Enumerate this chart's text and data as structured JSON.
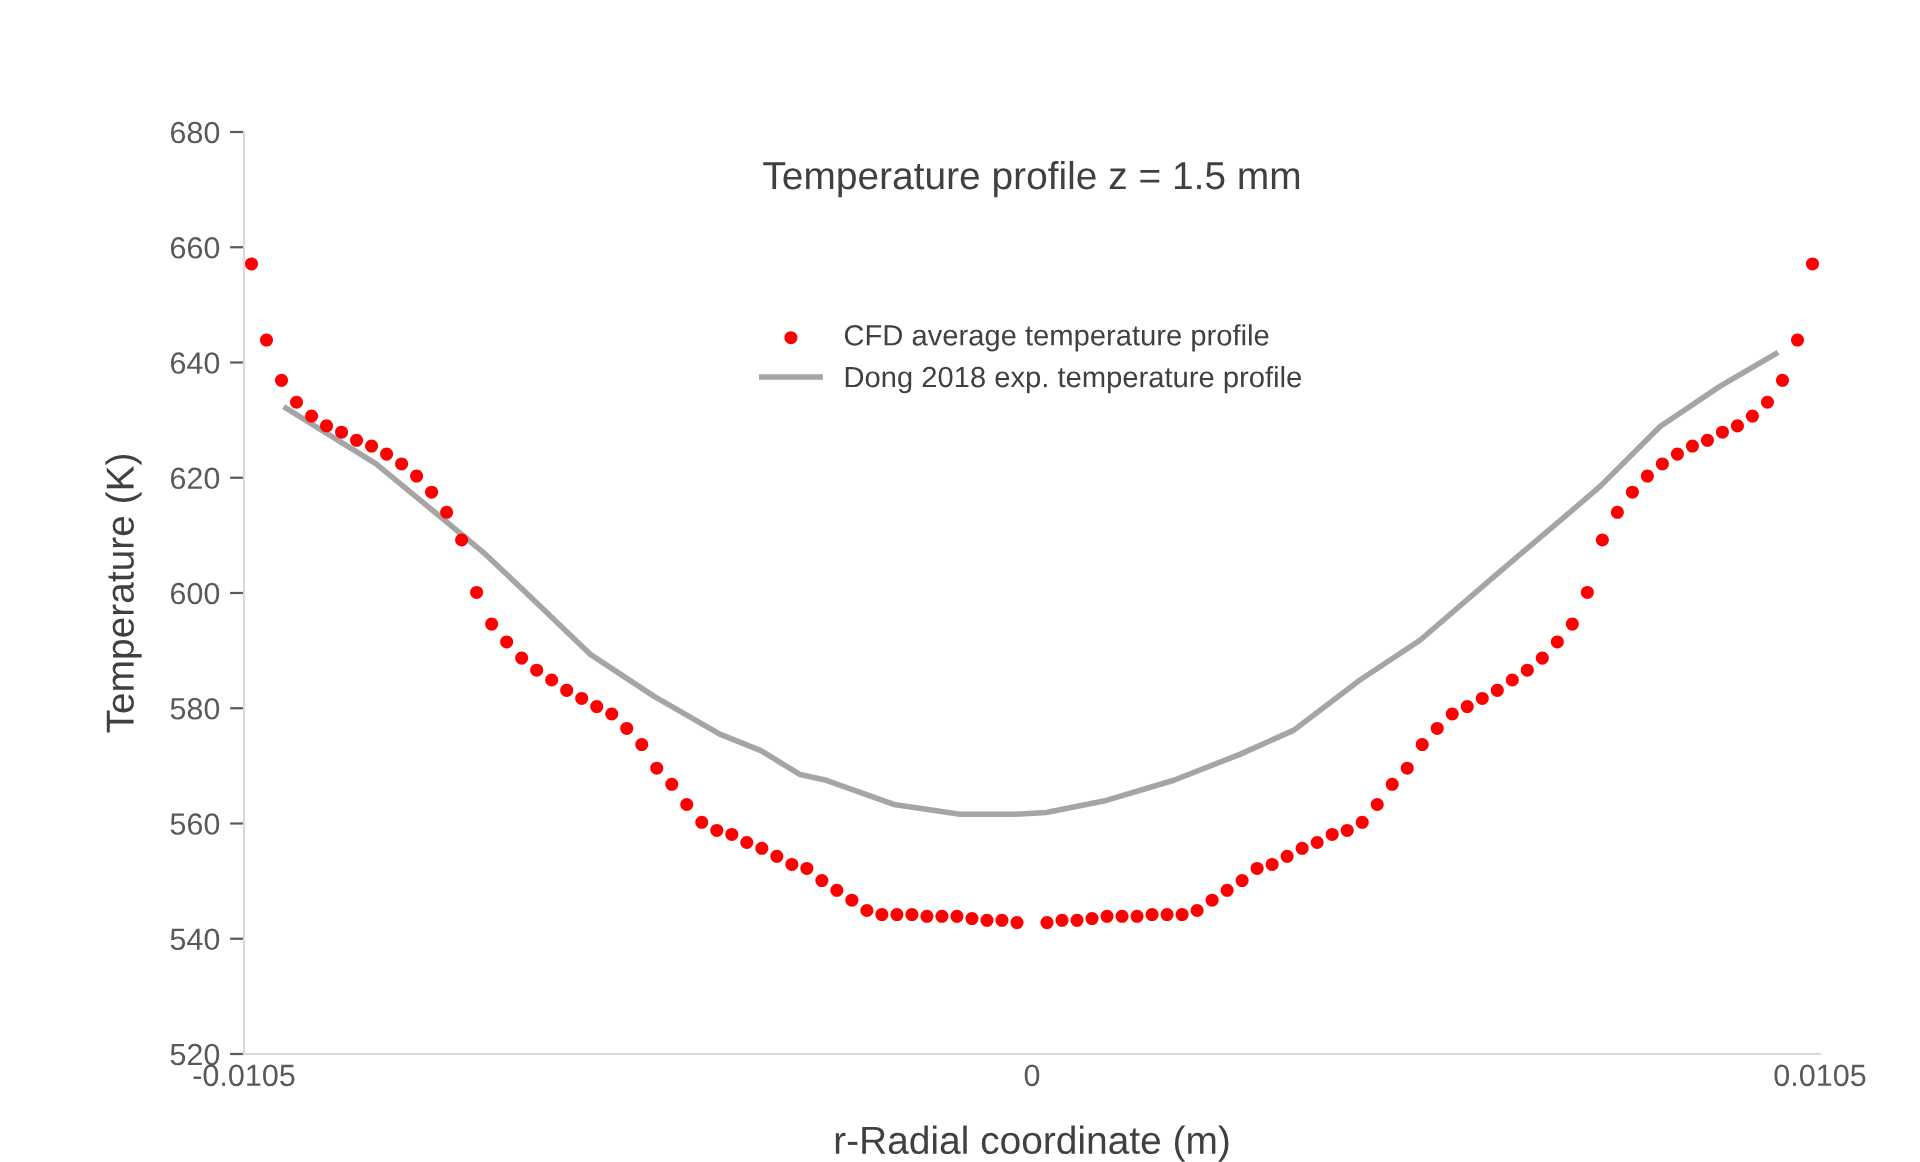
{
  "chart_data": {
    "type": "scatter",
    "title": "Temperature profile z = 1.5 mm",
    "xlabel": "r-Radial coordinate (m)",
    "ylabel": "Temperature (K)",
    "xlim": [
      -0.0105,
      0.0105
    ],
    "xticks": [
      -0.0105,
      0,
      0.0105
    ],
    "ylim": [
      520,
      680
    ],
    "yticks": [
      520,
      540,
      560,
      580,
      600,
      620,
      640,
      660,
      680
    ],
    "grid": false,
    "legend": "top",
    "series": [
      {
        "name": "CFD average temperature profile",
        "marker": "circle",
        "color": "#ff0000",
        "x": [
          -0.0104,
          -0.0102,
          -0.01,
          -0.0098,
          -0.0096,
          -0.0094,
          -0.0092,
          -0.009,
          -0.0088,
          -0.0086,
          -0.0084,
          -0.0082,
          -0.008,
          -0.0078,
          -0.0076,
          -0.0074,
          -0.0072,
          -0.007,
          -0.0068,
          -0.0066,
          -0.0064,
          -0.0062,
          -0.006,
          -0.0058,
          -0.0056,
          -0.0054,
          -0.0052,
          -0.005,
          -0.0048,
          -0.0046,
          -0.0044,
          -0.0042,
          -0.004,
          -0.0038,
          -0.0036,
          -0.0034,
          -0.0032,
          -0.003,
          -0.0028,
          -0.0026,
          -0.0024,
          -0.0022,
          -0.002,
          -0.0018,
          -0.0016,
          -0.0014,
          -0.0012,
          -0.001,
          -0.0008,
          -0.0006,
          -0.0004,
          -0.0002,
          0.0002,
          0.0004,
          0.0006,
          0.0008,
          0.001,
          0.0012,
          0.0014,
          0.0016,
          0.0018,
          0.002,
          0.0022,
          0.0024,
          0.0026,
          0.0028,
          0.003,
          0.0032,
          0.0034,
          0.0036,
          0.0038,
          0.004,
          0.0042,
          0.0044,
          0.0046,
          0.0048,
          0.005,
          0.0052,
          0.0054,
          0.0056,
          0.0058,
          0.006,
          0.0062,
          0.0064,
          0.0066,
          0.0068,
          0.007,
          0.0072,
          0.0074,
          0.0076,
          0.0078,
          0.008,
          0.0082,
          0.0084,
          0.0086,
          0.0088,
          0.009,
          0.0092,
          0.0094,
          0.0096,
          0.0098,
          0.01,
          0.0102,
          0.0104
        ],
        "values": [
          657.1,
          643.9,
          636.9,
          633.1,
          630.7,
          629.0,
          627.9,
          626.5,
          625.5,
          624.1,
          622.4,
          620.3,
          617.5,
          614.0,
          609.2,
          600.1,
          594.6,
          591.5,
          588.7,
          586.6,
          584.9,
          583.1,
          581.7,
          580.3,
          579.0,
          576.5,
          573.7,
          569.6,
          566.8,
          563.3,
          560.2,
          558.8,
          558.1,
          556.7,
          555.7,
          554.3,
          552.9,
          552.2,
          550.1,
          548.4,
          546.7,
          544.9,
          544.2,
          544.2,
          544.2,
          543.9,
          543.9,
          543.9,
          543.5,
          543.2,
          543.2,
          542.8,
          542.8,
          543.2,
          543.2,
          543.5,
          543.9,
          543.9,
          543.9,
          544.2,
          544.2,
          544.2,
          544.9,
          546.7,
          548.4,
          550.1,
          552.2,
          552.9,
          554.3,
          555.7,
          556.7,
          558.1,
          558.8,
          560.2,
          563.3,
          566.8,
          569.6,
          573.7,
          576.5,
          579.0,
          580.3,
          581.7,
          583.1,
          584.9,
          586.6,
          588.7,
          591.5,
          594.6,
          600.1,
          609.2,
          614.0,
          617.5,
          620.3,
          622.4,
          624.1,
          625.5,
          626.5,
          627.9,
          629.0,
          630.7,
          633.1,
          636.9,
          643.9,
          657.1
        ]
      },
      {
        "name": "Dong 2018 exp. temperature profile",
        "type": "line",
        "line_style": "solid",
        "color": "#a5a5a5",
        "x": [
          -0.00994,
          -0.00874,
          -0.00789,
          -0.00728,
          -0.00664,
          -0.00589,
          -0.00504,
          -0.00416,
          -0.00362,
          -0.00309,
          -0.00274,
          -0.00184,
          -0.00096,
          -0.00024,
          0.00019,
          0.00099,
          0.00189,
          0.00277,
          0.00349,
          0.00437,
          0.00517,
          0.00616,
          0.00704,
          0.00757,
          0.00837,
          0.00917,
          0.00991
        ],
        "values": [
          632.1,
          622.4,
          613.3,
          606.7,
          598.8,
          589.4,
          582.1,
          575.5,
          572.7,
          568.5,
          567.5,
          563.3,
          561.6,
          561.6,
          561.9,
          564.0,
          567.5,
          572.0,
          576.2,
          584.9,
          591.8,
          602.9,
          612.6,
          618.5,
          628.9,
          635.9,
          641.5
        ]
      }
    ]
  }
}
